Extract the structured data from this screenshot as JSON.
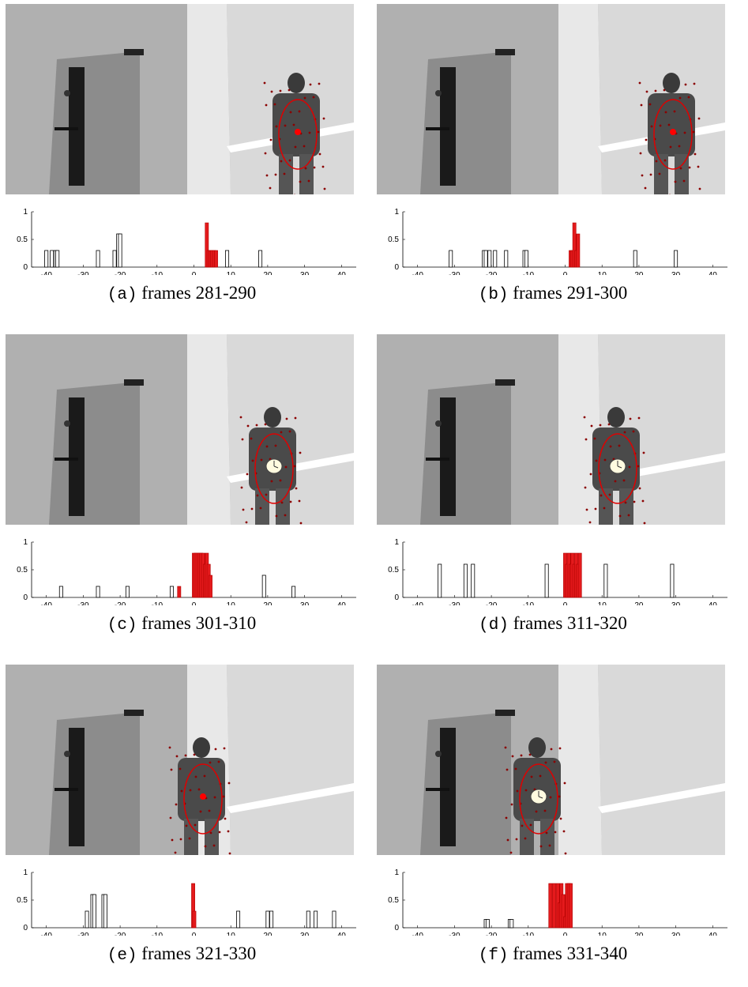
{
  "xticks": [
    -40,
    -30,
    -20,
    -10,
    0,
    10,
    20,
    30,
    40
  ],
  "yticks": [
    0,
    0.5,
    1
  ],
  "panels": [
    {
      "label": "(a)",
      "caption": "frames 281-290",
      "marker": "dot",
      "chart_data": {
        "type": "bar",
        "xlim": [
          -44,
          44
        ],
        "ylim": [
          0,
          1
        ],
        "bars_black": [
          [
            -40,
            0.3
          ],
          [
            -38.5,
            0.3
          ],
          [
            -37.5,
            0.3
          ],
          [
            -37,
            0.3
          ],
          [
            -26,
            0.3
          ],
          [
            -21.5,
            0.3
          ],
          [
            -20.5,
            0.6
          ],
          [
            -20,
            0.6
          ],
          [
            9,
            0.3
          ],
          [
            18,
            0.3
          ]
        ],
        "bars_red": [
          [
            3.5,
            0.8
          ],
          [
            4,
            0.3
          ],
          [
            4.5,
            0.3
          ],
          [
            5,
            0.3
          ],
          [
            5.5,
            0.3
          ],
          [
            6,
            0.3
          ]
        ]
      }
    },
    {
      "label": "(b)",
      "caption": "frames 291-300",
      "marker": "dot",
      "chart_data": {
        "type": "bar",
        "xlim": [
          -44,
          44
        ],
        "ylim": [
          0,
          1
        ],
        "bars_black": [
          [
            -31,
            0.3
          ],
          [
            -22,
            0.3
          ],
          [
            -21.5,
            0.3
          ],
          [
            -20.5,
            0.3
          ],
          [
            -19,
            0.3
          ],
          [
            -16,
            0.3
          ],
          [
            -11,
            0.3
          ],
          [
            -10.5,
            0.3
          ],
          [
            19,
            0.3
          ],
          [
            30,
            0.3
          ]
        ],
        "bars_red": [
          [
            1.5,
            0.3
          ],
          [
            2,
            0.3
          ],
          [
            2.5,
            0.8
          ],
          [
            3,
            0.3
          ],
          [
            3.5,
            0.6
          ]
        ]
      }
    },
    {
      "label": "(c)",
      "caption": "frames 301-310",
      "marker": "clock",
      "chart_data": {
        "type": "bar",
        "xlim": [
          -44,
          44
        ],
        "ylim": [
          0,
          1
        ],
        "bars_black": [
          [
            -36,
            0.2
          ],
          [
            -26,
            0.2
          ],
          [
            -18,
            0.2
          ],
          [
            -6,
            0.2
          ],
          [
            19,
            0.4
          ],
          [
            27,
            0.2
          ]
        ],
        "bars_red": [
          [
            -4,
            0.2
          ],
          [
            0,
            0.8
          ],
          [
            0.5,
            0.8
          ],
          [
            1,
            0.8
          ],
          [
            1.5,
            0.8
          ],
          [
            2,
            0.8
          ],
          [
            2.5,
            0.8
          ],
          [
            3,
            0.6
          ],
          [
            3.5,
            0.8
          ],
          [
            4,
            0.6
          ],
          [
            4.5,
            0.4
          ]
        ]
      }
    },
    {
      "label": "(d)",
      "caption": "frames 311-320",
      "marker": "clock",
      "chart_data": {
        "type": "bar",
        "xlim": [
          -44,
          44
        ],
        "ylim": [
          0,
          1
        ],
        "bars_black": [
          [
            -34,
            0.6
          ],
          [
            -27,
            0.6
          ],
          [
            -25,
            0.6
          ],
          [
            -5,
            0.6
          ],
          [
            11,
            0.6
          ],
          [
            29,
            0.6
          ]
        ],
        "bars_red": [
          [
            0,
            0.8
          ],
          [
            0.5,
            0.6
          ],
          [
            1,
            0.8
          ],
          [
            1.5,
            0.6
          ],
          [
            2,
            0.8
          ],
          [
            2.5,
            0.6
          ],
          [
            3,
            0.8
          ],
          [
            3.5,
            0.6
          ],
          [
            4,
            0.8
          ]
        ]
      }
    },
    {
      "label": "(e)",
      "caption": "frames 321-330",
      "marker": "dot",
      "chart_data": {
        "type": "bar",
        "xlim": [
          -44,
          44
        ],
        "ylim": [
          0,
          1
        ],
        "bars_black": [
          [
            -29,
            0.3
          ],
          [
            -27.5,
            0.6
          ],
          [
            -27,
            0.6
          ],
          [
            -24.5,
            0.6
          ],
          [
            -24,
            0.6
          ],
          [
            12,
            0.3
          ],
          [
            20,
            0.3
          ],
          [
            21,
            0.3
          ],
          [
            31,
            0.3
          ],
          [
            33,
            0.3
          ],
          [
            38,
            0.3
          ]
        ],
        "bars_red": [
          [
            -0.2,
            0.8
          ],
          [
            0.1,
            0.3
          ]
        ]
      }
    },
    {
      "label": "(f)",
      "caption": "frames 331-340",
      "marker": "clock",
      "chart_data": {
        "type": "bar",
        "xlim": [
          -44,
          44
        ],
        "ylim": [
          0,
          1
        ],
        "bars_black": [
          [
            -21.5,
            0.15
          ],
          [
            -21,
            0.15
          ],
          [
            -15,
            0.15
          ],
          [
            -14.5,
            0.15
          ]
        ],
        "bars_red": [
          [
            -4,
            0.8
          ],
          [
            -3,
            0.8
          ],
          [
            -2,
            0.8
          ],
          [
            -1.5,
            0.45
          ],
          [
            -1,
            0.8
          ],
          [
            -0.5,
            0.6
          ],
          [
            0,
            0.2
          ],
          [
            0.5,
            0.8
          ],
          [
            1,
            0.8
          ],
          [
            1.5,
            0.8
          ]
        ]
      }
    }
  ],
  "colors": {
    "red": "#e41a1c",
    "outline": "#000000",
    "scene_wall": "#d9d9d9",
    "door": "#8c8c8c"
  }
}
